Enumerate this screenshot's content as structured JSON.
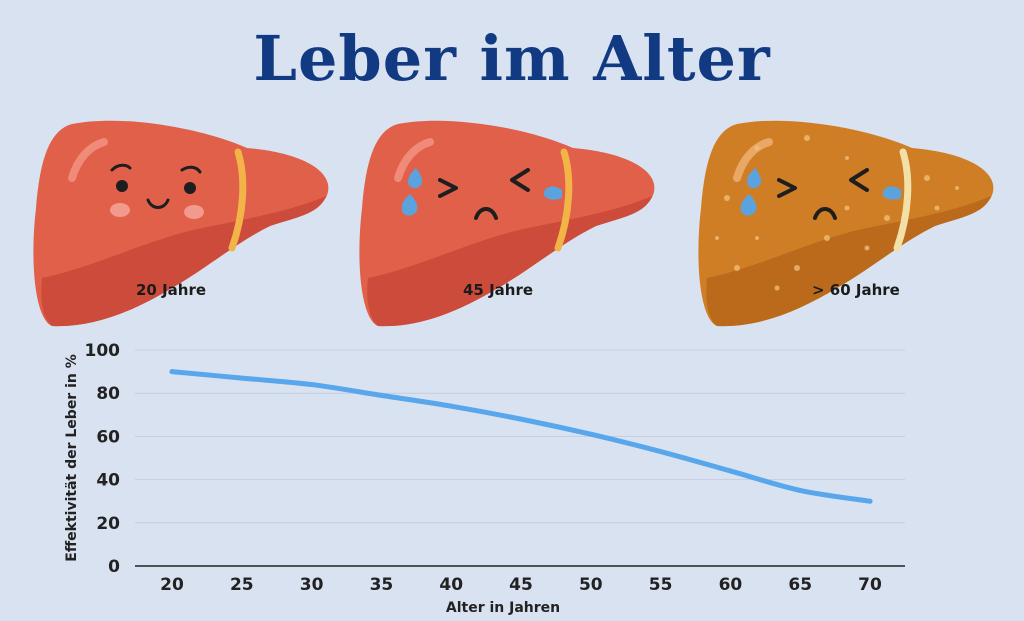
{
  "title": "Leber im Alter",
  "livers": [
    {
      "label": "20 Jahre",
      "state": "healthy",
      "color": "#e0604a"
    },
    {
      "label": "45 Jahre",
      "state": "crying",
      "color": "#e0604a"
    },
    {
      "label": "> 60 Jahre",
      "state": "crying-fatty",
      "color": "#d07e25"
    }
  ],
  "colors": {
    "line": "#58a6ec",
    "grid": "#c3cde0",
    "axis": "#222222"
  },
  "chart_data": {
    "type": "line",
    "xlabel": "Alter in Jahren",
    "ylabel": "Effektivität der Leber in %",
    "x": [
      20,
      25,
      30,
      35,
      40,
      45,
      50,
      55,
      60,
      65,
      70
    ],
    "y": [
      90,
      87,
      84,
      79,
      74,
      68,
      61,
      53,
      44,
      35,
      30
    ],
    "xticks": [
      "20",
      "25",
      "30",
      "35",
      "40",
      "45",
      "50",
      "55",
      "60",
      "65",
      "70"
    ],
    "yticks": [
      "0",
      "20",
      "40",
      "60",
      "80",
      "100"
    ],
    "xlim": [
      20,
      70
    ],
    "ylim": [
      0,
      100
    ],
    "grid": true,
    "smooth": true
  }
}
